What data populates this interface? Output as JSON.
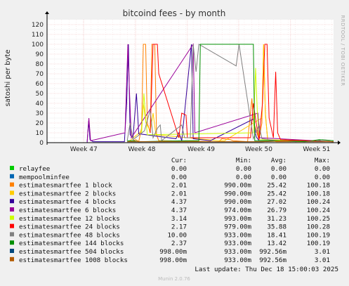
{
  "chart_data": {
    "type": "line",
    "title": "bitcoind fees - by month",
    "ylabel": "satoshi per byte",
    "side_label": "RRDTOOL / TOBI OETIKER",
    "ylim": [
      0,
      125
    ],
    "yticks": [
      0,
      10,
      20,
      30,
      40,
      50,
      60,
      70,
      80,
      90,
      100,
      110,
      120
    ],
    "x_tick_labels": [
      "Week 47",
      "Week 48",
      "Week 49",
      "Week 50",
      "Week 51"
    ],
    "grid": true,
    "legend_placement": "bottom",
    "column_headers": [
      "Cur:",
      "Min:",
      "Avg:",
      "Max:"
    ],
    "series": [
      {
        "name": "relayfee",
        "color": "#00cc00",
        "cur": "0.00",
        "min": "0.00",
        "avg": "0.00",
        "max": "0.00",
        "points": [
          [
            0,
            0
          ],
          [
            100,
            0
          ]
        ]
      },
      {
        "name": "mempoolminfee",
        "color": "#0066b3",
        "cur": "0.00",
        "min": "0.00",
        "avg": "0.00",
        "max": "0.00",
        "points": [
          [
            0,
            0
          ],
          [
            100,
            0
          ]
        ]
      },
      {
        "name": "estimatesmartfee 1 block",
        "color": "#ff8000",
        "cur": "2.01",
        "min": "990.00m",
        "avg": "25.42",
        "max": "100.18",
        "points": [
          [
            28.5,
            1
          ],
          [
            30,
            2
          ],
          [
            31,
            3
          ],
          [
            32,
            1
          ],
          [
            33,
            15
          ],
          [
            33.6,
            100
          ],
          [
            34.4,
            100
          ],
          [
            35,
            20
          ],
          [
            36,
            10
          ],
          [
            36.6,
            100
          ],
          [
            37.6,
            100
          ],
          [
            38.2,
            8
          ],
          [
            39,
            2
          ],
          [
            60,
            1
          ],
          [
            61,
            4
          ],
          [
            64,
            3
          ],
          [
            65,
            2
          ],
          [
            70,
            1
          ],
          [
            71.5,
            45
          ],
          [
            72,
            22
          ],
          [
            74,
            3
          ],
          [
            75,
            20
          ],
          [
            75.6,
            100
          ],
          [
            76.2,
            30
          ],
          [
            77,
            3
          ],
          [
            80,
            1
          ],
          [
            100,
            1
          ]
        ]
      },
      {
        "name": "estimatesmartfee 2 blocks",
        "color": "#ffcc00",
        "cur": "2.01",
        "min": "990.00m",
        "avg": "25.42",
        "max": "100.18",
        "points": [
          [
            28.5,
            1
          ],
          [
            33,
            12
          ],
          [
            33.6,
            40
          ],
          [
            34.5,
            20
          ],
          [
            36,
            12
          ],
          [
            37,
            30
          ],
          [
            38,
            8
          ],
          [
            60,
            2
          ],
          [
            62,
            2
          ],
          [
            72,
            20
          ],
          [
            75,
            25
          ],
          [
            75.6,
            100
          ],
          [
            76.2,
            28
          ],
          [
            77,
            3
          ],
          [
            100,
            1
          ]
        ]
      },
      {
        "name": "estimatesmartfee 4 blocks",
        "color": "#330099",
        "cur": "4.37",
        "min": "990.00m",
        "avg": "27.02",
        "max": "100.24",
        "points": [
          [
            14,
            0
          ],
          [
            14.5,
            22
          ],
          [
            15,
            3
          ],
          [
            16,
            1
          ],
          [
            27,
            1
          ],
          [
            27.8,
            40
          ],
          [
            28.4,
            100
          ],
          [
            29,
            8
          ],
          [
            30,
            5
          ],
          [
            31.2,
            50
          ],
          [
            32,
            9
          ],
          [
            45,
            4
          ],
          [
            46,
            10
          ],
          [
            47,
            2
          ],
          [
            50.4,
            100
          ],
          [
            51,
            4
          ],
          [
            57,
            2
          ],
          [
            72,
            24
          ],
          [
            73,
            6
          ],
          [
            74,
            2
          ],
          [
            100,
            1
          ]
        ]
      },
      {
        "name": "estimatesmartfee 6 blocks",
        "color": "#990099",
        "cur": "4.37",
        "min": "974.00m",
        "avg": "26.79",
        "max": "100.24",
        "points": [
          [
            14,
            1
          ],
          [
            14.6,
            25
          ],
          [
            15.2,
            2
          ],
          [
            27.2,
            10
          ],
          [
            28.2,
            100
          ],
          [
            28.8,
            50
          ],
          [
            29.4,
            5
          ],
          [
            51,
            100
          ],
          [
            51.6,
            10
          ],
          [
            73.6,
            30
          ],
          [
            74.2,
            5
          ],
          [
            100,
            1
          ]
        ]
      },
      {
        "name": "estimatesmartfee 12 blocks",
        "color": "#ccff00",
        "cur": "3.14",
        "min": "993.00m",
        "avg": "31.23",
        "max": "100.25",
        "points": [
          [
            33,
            10
          ],
          [
            33.8,
            50
          ],
          [
            34.4,
            25
          ],
          [
            35,
            8
          ],
          [
            72,
            10
          ],
          [
            72.8,
            76
          ],
          [
            73.4,
            30
          ],
          [
            74,
            3
          ],
          [
            100,
            1
          ]
        ]
      },
      {
        "name": "estimatesmartfee 24 blocks",
        "color": "#ff0000",
        "cur": "2.17",
        "min": "979.00m",
        "avg": "35.88",
        "max": "100.28",
        "points": [
          [
            36,
            10
          ],
          [
            37,
            100
          ],
          [
            38.5,
            100
          ],
          [
            39,
            70
          ],
          [
            46,
            5
          ],
          [
            47,
            30
          ],
          [
            48.5,
            28
          ],
          [
            49,
            5
          ],
          [
            71,
            5
          ],
          [
            72,
            40
          ],
          [
            73,
            20
          ],
          [
            74,
            3
          ],
          [
            75.2,
            40
          ],
          [
            76,
            100
          ],
          [
            76.8,
            100
          ],
          [
            77.5,
            25
          ],
          [
            79,
            5
          ],
          [
            79.8,
            72
          ],
          [
            80.5,
            10
          ],
          [
            81.5,
            3
          ],
          [
            100,
            1
          ]
        ]
      },
      {
        "name": "estimatesmartfee 48 blocks",
        "color": "#808080",
        "cur": "10.00",
        "min": "933.00m",
        "avg": "18.41",
        "max": "100.19",
        "points": [
          [
            28,
            2
          ],
          [
            29,
            20
          ],
          [
            30,
            3
          ],
          [
            34,
            12
          ],
          [
            36,
            33
          ],
          [
            37,
            5
          ],
          [
            38.6,
            15
          ],
          [
            39.5,
            18
          ],
          [
            40,
            2
          ],
          [
            47,
            18
          ],
          [
            48,
            5
          ],
          [
            50,
            5
          ],
          [
            51,
            100
          ],
          [
            52,
            72
          ],
          [
            53,
            100
          ],
          [
            66,
            78
          ],
          [
            67,
            100
          ],
          [
            72,
            4
          ],
          [
            74,
            18
          ],
          [
            75,
            4
          ],
          [
            80,
            2
          ],
          [
            87,
            1
          ],
          [
            88,
            2
          ],
          [
            93,
            1
          ],
          [
            96,
            3
          ],
          [
            100,
            2
          ]
        ]
      },
      {
        "name": "estimatesmartfee 144 blocks",
        "color": "#008f00",
        "cur": "2.37",
        "min": "933.00m",
        "avg": "13.42",
        "max": "100.19",
        "points": [
          [
            28,
            2
          ],
          [
            30,
            2
          ],
          [
            32,
            1
          ],
          [
            50,
            2
          ],
          [
            53,
            2
          ],
          [
            53.5,
            100
          ],
          [
            72,
            100
          ],
          [
            72.5,
            2
          ],
          [
            74,
            2
          ],
          [
            80,
            2
          ],
          [
            90,
            1
          ],
          [
            95,
            3
          ],
          [
            100,
            2
          ]
        ]
      },
      {
        "name": "estimatesmartfee 504 blocks",
        "color": "#00487d",
        "cur": "998.00m",
        "min": "933.00m",
        "avg": "992.56m",
        "max": "3.01",
        "points": [
          [
            28,
            1
          ],
          [
            50,
            1
          ],
          [
            60,
            1
          ],
          [
            75,
            1
          ],
          [
            86,
            2
          ],
          [
            100,
            1
          ]
        ]
      },
      {
        "name": "estimatesmartfee 1008 blocks",
        "color": "#b35a00",
        "cur": "998.00m",
        "min": "933.00m",
        "avg": "992.56m",
        "max": "3.01",
        "points": [
          [
            28,
            1
          ],
          [
            50,
            1
          ],
          [
            60,
            1
          ],
          [
            75,
            1
          ],
          [
            86,
            2
          ],
          [
            100,
            1
          ]
        ]
      }
    ]
  },
  "footer": {
    "last_update": "Last update: Thu Dec 18 15:00:03 2025",
    "munin": "Munin 2.0.76"
  }
}
